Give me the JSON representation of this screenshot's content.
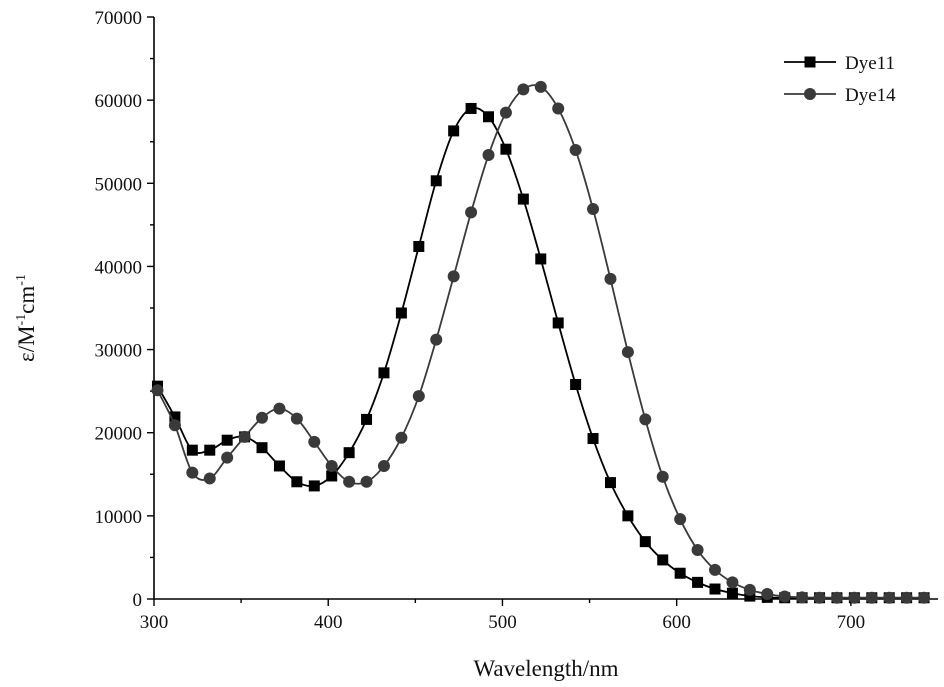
{
  "chart_data": {
    "type": "line",
    "xlabel": "Wavelength/nm",
    "ylabel": "ε/M",
    "ylabel_sup1": "-1",
    "ylabel_mid": "cm",
    "ylabel_sup2": "-1",
    "xlim": [
      300,
      750
    ],
    "ylim": [
      0,
      70000
    ],
    "xticks": [
      300,
      400,
      500,
      600,
      700
    ],
    "yticks": [
      0,
      10000,
      20000,
      30000,
      40000,
      50000,
      60000,
      70000
    ],
    "xtick_labels": [
      "300",
      "400",
      "500",
      "600",
      "700"
    ],
    "ytick_labels": [
      "0",
      "10000",
      "20000",
      "30000",
      "40000",
      "50000",
      "60000",
      "70000"
    ],
    "grid": false,
    "legend_position": "top-right",
    "colors": {
      "Dye11": "#000000",
      "Dye14": "#3a3a3a"
    },
    "series": [
      {
        "name": "Dye11",
        "marker": "square",
        "x": [
          302,
          312,
          322,
          332,
          342,
          352,
          362,
          372,
          382,
          392,
          402,
          412,
          422,
          432,
          442,
          452,
          462,
          472,
          482,
          492,
          502,
          512,
          522,
          532,
          542,
          552,
          562,
          572,
          582,
          592,
          602,
          612,
          622,
          632,
          642,
          652,
          662,
          672,
          682,
          692,
          702,
          712,
          722,
          732,
          742
        ],
        "y": [
          25600,
          21900,
          17900,
          17900,
          19100,
          19500,
          18200,
          16000,
          14100,
          13600,
          14800,
          17600,
          21600,
          27200,
          34400,
          42400,
          50300,
          56300,
          59000,
          58000,
          54100,
          48100,
          40900,
          33200,
          25800,
          19300,
          14000,
          10000,
          6900,
          4700,
          3100,
          2000,
          1200,
          700,
          350,
          200,
          150,
          150,
          150,
          150,
          150,
          150,
          150,
          150,
          150
        ]
      },
      {
        "name": "Dye14",
        "marker": "circle",
        "x": [
          302,
          312,
          322,
          332,
          342,
          352,
          362,
          372,
          382,
          392,
          402,
          412,
          422,
          432,
          442,
          452,
          462,
          472,
          482,
          492,
          502,
          512,
          522,
          532,
          542,
          552,
          562,
          572,
          582,
          592,
          602,
          612,
          622,
          632,
          642,
          652,
          662,
          672,
          682,
          692,
          702,
          712,
          722,
          732,
          742
        ],
        "y": [
          25100,
          20900,
          15200,
          14500,
          17000,
          19500,
          21800,
          22900,
          21700,
          18900,
          16000,
          14100,
          14100,
          16000,
          19400,
          24400,
          31200,
          38800,
          46500,
          53400,
          58500,
          61300,
          61600,
          59000,
          54000,
          46900,
          38500,
          29700,
          21600,
          14700,
          9600,
          5900,
          3500,
          2000,
          1100,
          600,
          300,
          200,
          150,
          150,
          150,
          150,
          150,
          150,
          150
        ]
      }
    ]
  }
}
